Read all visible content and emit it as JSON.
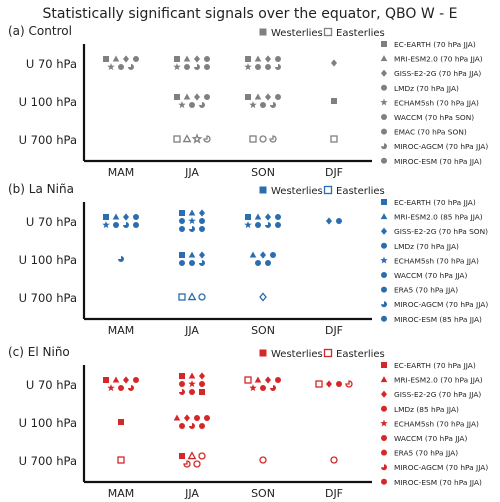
{
  "title": "Statistically significant signals over the equator, QBO W - E",
  "rows": [
    "U 70 hPa",
    "U 100 hPa",
    "U 700 hPa"
  ],
  "seasons": [
    "MAM",
    "JJA",
    "SON",
    "DJF"
  ],
  "legend_labels": {
    "westerlies": "Westerlies",
    "easterlies": "Easterlies"
  },
  "panels": [
    {
      "label": "(a) Control",
      "color": "#808080",
      "models": [
        {
          "name": "EC-EARTH (70 hPa JJA)",
          "icon": "square"
        },
        {
          "name": "MRI-ESM2.0 (70 hPa JJA)",
          "icon": "triangle"
        },
        {
          "name": "GISS-E2-2G (70 hPa JJA)",
          "icon": "diamond"
        },
        {
          "name": "LMDz (70 hPa JJA)",
          "icon": "circle"
        },
        {
          "name": "ECHAM5sh (70 hPa JJA)",
          "icon": "star"
        },
        {
          "name": "WACCM (70 hPa SON)",
          "icon": "circle"
        },
        {
          "name": "EMAC (70 hPa SON)",
          "icon": "circle"
        },
        {
          "name": "MIROC-AGCM (70 hPa JJA)",
          "icon": "crescent"
        },
        {
          "name": "MIROC-ESM (70 hPa JJA)",
          "icon": "circle"
        }
      ]
    },
    {
      "label": "(b) La Niña",
      "color": "#2a6db0",
      "models": [
        {
          "name": "EC-EARTH (70 hPa JJA)",
          "icon": "square"
        },
        {
          "name": "MRI-ESM2.0 (85 hPa JJA)",
          "icon": "triangle"
        },
        {
          "name": "GISS-E2-2G (70 hPa SON)",
          "icon": "diamond"
        },
        {
          "name": "LMDz (70 hPa JJA)",
          "icon": "circle"
        },
        {
          "name": "ECHAM5sh (70 hPa JJA)",
          "icon": "star"
        },
        {
          "name": "WACCM (70 hPa JJA)",
          "icon": "circle"
        },
        {
          "name": "ERA5 (70 hPa JJA)",
          "icon": "circle"
        },
        {
          "name": "MIROC-AGCM (70 hPa JJA)",
          "icon": "crescent"
        },
        {
          "name": "MIROC-ESM (85 hPa JJA)",
          "icon": "circle"
        }
      ]
    },
    {
      "label": "(c) El Niño",
      "color": "#d62728",
      "models": [
        {
          "name": "EC-EARTH (70 hPa JJA)",
          "icon": "square"
        },
        {
          "name": "MRI-ESM2.0 (70 hPa JJA)",
          "icon": "triangle"
        },
        {
          "name": "GISS-E2-2G (70 hPa JJA)",
          "icon": "diamond"
        },
        {
          "name": "LMDz (85 hPa JJA)",
          "icon": "circle"
        },
        {
          "name": "ECHAM5sh (70 hPa JJA)",
          "icon": "star"
        },
        {
          "name": "WACCM (70 hPa JJA)",
          "icon": "circle"
        },
        {
          "name": "ERA5 (70 hPa JJA)",
          "icon": "circle"
        },
        {
          "name": "MIROC-AGCM (70 hPa JJA)",
          "icon": "crescent"
        },
        {
          "name": "MIROC-ESM (70 hPa JJA)",
          "icon": "circle"
        }
      ]
    }
  ],
  "chart_data": {
    "type": "table",
    "title": "Statistically significant signals over the equator, QBO W - E",
    "columns": [
      "MAM",
      "JJA",
      "SON",
      "DJF"
    ],
    "rows": [
      "U 70 hPa",
      "U 100 hPa",
      "U 700 hPa"
    ],
    "panels": [
      {
        "label": "(a) Control",
        "cells": [
          {
            "row": 0,
            "col": 0,
            "markers": [
              {
                "s": "square",
                "f": 1
              },
              {
                "s": "triangle",
                "f": 1
              },
              {
                "s": "diamond",
                "f": 1
              },
              {
                "s": "circle",
                "f": 1
              },
              {
                "s": "star",
                "f": 1
              },
              {
                "s": "circle",
                "f": 1
              },
              {
                "s": "crescent",
                "f": 1
              }
            ]
          },
          {
            "row": 0,
            "col": 1,
            "markers": [
              {
                "s": "square",
                "f": 1
              },
              {
                "s": "triangle",
                "f": 1
              },
              {
                "s": "diamond",
                "f": 1
              },
              {
                "s": "circle",
                "f": 1
              },
              {
                "s": "star",
                "f": 1
              },
              {
                "s": "circle",
                "f": 1
              },
              {
                "s": "crescent",
                "f": 1
              },
              {
                "s": "circle",
                "f": 1
              }
            ]
          },
          {
            "row": 0,
            "col": 2,
            "markers": [
              {
                "s": "square",
                "f": 1
              },
              {
                "s": "triangle",
                "f": 1
              },
              {
                "s": "diamond",
                "f": 1
              },
              {
                "s": "circle",
                "f": 1
              },
              {
                "s": "star",
                "f": 1
              },
              {
                "s": "circle",
                "f": 1
              },
              {
                "s": "circle",
                "f": 1
              },
              {
                "s": "crescent",
                "f": 1
              }
            ]
          },
          {
            "row": 0,
            "col": 3,
            "markers": [
              {
                "s": "diamond",
                "f": 1
              }
            ]
          },
          {
            "row": 1,
            "col": 1,
            "markers": [
              {
                "s": "square",
                "f": 1
              },
              {
                "s": "triangle",
                "f": 1
              },
              {
                "s": "diamond",
                "f": 1
              },
              {
                "s": "circle",
                "f": 1
              },
              {
                "s": "star",
                "f": 1
              },
              {
                "s": "circle",
                "f": 1
              },
              {
                "s": "crescent",
                "f": 1
              }
            ]
          },
          {
            "row": 1,
            "col": 2,
            "markers": [
              {
                "s": "square",
                "f": 1
              },
              {
                "s": "triangle",
                "f": 1
              },
              {
                "s": "diamond",
                "f": 1
              },
              {
                "s": "circle",
                "f": 1
              },
              {
                "s": "star",
                "f": 1
              },
              {
                "s": "circle",
                "f": 1
              },
              {
                "s": "crescent",
                "f": 1
              }
            ]
          },
          {
            "row": 1,
            "col": 3,
            "markers": [
              {
                "s": "square",
                "f": 1
              }
            ]
          },
          {
            "row": 2,
            "col": 1,
            "markers": [
              {
                "s": "square",
                "f": 0
              },
              {
                "s": "triangle",
                "f": 0
              },
              {
                "s": "star",
                "f": 0
              },
              {
                "s": "crescent",
                "f": 0
              }
            ]
          },
          {
            "row": 2,
            "col": 2,
            "markers": [
              {
                "s": "square",
                "f": 0
              },
              {
                "s": "circle",
                "f": 0
              },
              {
                "s": "crescent",
                "f": 0
              }
            ]
          },
          {
            "row": 2,
            "col": 3,
            "markers": [
              {
                "s": "square",
                "f": 0
              }
            ]
          }
        ]
      },
      {
        "label": "(b) La Niña",
        "cells": [
          {
            "row": 0,
            "col": 0,
            "markers": [
              {
                "s": "square",
                "f": 1
              },
              {
                "s": "triangle",
                "f": 1
              },
              {
                "s": "diamond",
                "f": 1
              },
              {
                "s": "circle",
                "f": 1
              },
              {
                "s": "star",
                "f": 1
              },
              {
                "s": "circle",
                "f": 1
              },
              {
                "s": "crescent",
                "f": 1
              },
              {
                "s": "circle",
                "f": 1
              }
            ]
          },
          {
            "row": 0,
            "col": 1,
            "markers": [
              {
                "s": "square",
                "f": 1
              },
              {
                "s": "triangle",
                "f": 1
              },
              {
                "s": "diamond",
                "f": 1
              },
              {
                "s": "circle",
                "f": 1
              },
              {
                "s": "star",
                "f": 1
              },
              {
                "s": "circle",
                "f": 1
              },
              {
                "s": "circle",
                "f": 1
              },
              {
                "s": "crescent",
                "f": 1
              },
              {
                "s": "circle",
                "f": 1
              }
            ]
          },
          {
            "row": 0,
            "col": 2,
            "markers": [
              {
                "s": "square",
                "f": 1
              },
              {
                "s": "triangle",
                "f": 1
              },
              {
                "s": "diamond",
                "f": 1
              },
              {
                "s": "circle",
                "f": 1
              },
              {
                "s": "star",
                "f": 1
              },
              {
                "s": "circle",
                "f": 1
              },
              {
                "s": "crescent",
                "f": 1
              },
              {
                "s": "circle",
                "f": 1
              }
            ]
          },
          {
            "row": 0,
            "col": 3,
            "markers": [
              {
                "s": "diamond",
                "f": 1
              },
              {
                "s": "circle",
                "f": 1
              }
            ]
          },
          {
            "row": 1,
            "col": 1,
            "markers": [
              {
                "s": "square",
                "f": 1
              },
              {
                "s": "triangle",
                "f": 1
              },
              {
                "s": "diamond",
                "f": 1
              },
              {
                "s": "circle",
                "f": 1
              },
              {
                "s": "circle",
                "f": 1
              },
              {
                "s": "crescent",
                "f": 1
              }
            ]
          },
          {
            "row": 1,
            "col": 2,
            "markers": [
              {
                "s": "triangle",
                "f": 1
              },
              {
                "s": "diamond",
                "f": 1
              },
              {
                "s": "circle",
                "f": 1
              },
              {
                "s": "circle",
                "f": 1
              },
              {
                "s": "circle",
                "f": 1
              }
            ]
          },
          {
            "row": 1,
            "col": 0,
            "markers": [
              {
                "s": "crescent",
                "f": 1
              }
            ]
          },
          {
            "row": 2,
            "col": 1,
            "markers": [
              {
                "s": "square",
                "f": 0
              },
              {
                "s": "triangle",
                "f": 0
              },
              {
                "s": "circle",
                "f": 0
              }
            ]
          },
          {
            "row": 2,
            "col": 2,
            "markers": [
              {
                "s": "diamond",
                "f": 0
              }
            ]
          }
        ]
      },
      {
        "label": "(c) El Niño",
        "cells": [
          {
            "row": 0,
            "col": 0,
            "markers": [
              {
                "s": "square",
                "f": 1
              },
              {
                "s": "triangle",
                "f": 1
              },
              {
                "s": "diamond",
                "f": 1
              },
              {
                "s": "circle",
                "f": 1
              },
              {
                "s": "star",
                "f": 1
              },
              {
                "s": "circle",
                "f": 1
              },
              {
                "s": "crescent",
                "f": 1
              }
            ]
          },
          {
            "row": 0,
            "col": 1,
            "markers": [
              {
                "s": "square",
                "f": 1
              },
              {
                "s": "triangle",
                "f": 1
              },
              {
                "s": "diamond",
                "f": 1
              },
              {
                "s": "circle",
                "f": 1
              },
              {
                "s": "star",
                "f": 1
              },
              {
                "s": "circle",
                "f": 1
              },
              {
                "s": "crescent",
                "f": 1
              },
              {
                "s": "circle",
                "f": 1
              },
              {
                "s": "square",
                "f": 1
              }
            ]
          },
          {
            "row": 0,
            "col": 2,
            "markers": [
              {
                "s": "square",
                "f": 0
              },
              {
                "s": "triangle",
                "f": 1
              },
              {
                "s": "diamond",
                "f": 1
              },
              {
                "s": "circle",
                "f": 1
              },
              {
                "s": "star",
                "f": 1
              },
              {
                "s": "circle",
                "f": 1
              },
              {
                "s": "crescent",
                "f": 1
              }
            ]
          },
          {
            "row": 0,
            "col": 3,
            "markers": [
              {
                "s": "square",
                "f": 0
              },
              {
                "s": "diamond",
                "f": 1
              },
              {
                "s": "circle",
                "f": 1
              },
              {
                "s": "crescent",
                "f": 0
              }
            ]
          },
          {
            "row": 1,
            "col": 0,
            "markers": [
              {
                "s": "square",
                "f": 1
              }
            ]
          },
          {
            "row": 1,
            "col": 1,
            "markers": [
              {
                "s": "triangle",
                "f": 1
              },
              {
                "s": "diamond",
                "f": 1
              },
              {
                "s": "circle",
                "f": 1
              },
              {
                "s": "circle",
                "f": 1
              },
              {
                "s": "circle",
                "f": 1
              },
              {
                "s": "crescent",
                "f": 1
              },
              {
                "s": "circle",
                "f": 1
              }
            ]
          },
          {
            "row": 2,
            "col": 0,
            "markers": [
              {
                "s": "square",
                "f": 0
              }
            ]
          },
          {
            "row": 2,
            "col": 1,
            "markers": [
              {
                "s": "square",
                "f": 1
              },
              {
                "s": "triangle",
                "f": 0
              },
              {
                "s": "circle",
                "f": 0
              },
              {
                "s": "crescent",
                "f": 0
              },
              {
                "s": "circle",
                "f": 0
              }
            ]
          },
          {
            "row": 2,
            "col": 2,
            "markers": [
              {
                "s": "circle",
                "f": 0
              }
            ]
          },
          {
            "row": 2,
            "col": 3,
            "markers": [
              {
                "s": "circle",
                "f": 0
              }
            ]
          }
        ]
      }
    ]
  }
}
